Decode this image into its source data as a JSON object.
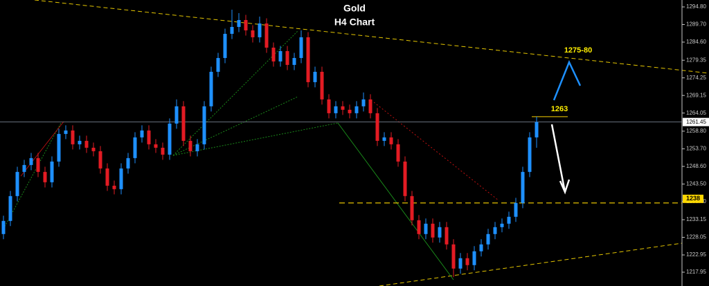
{
  "chart_data": {
    "type": "candlestick",
    "title": "Gold",
    "subtitle": "H4 Chart",
    "up_color": "#1e90ff",
    "down_color": "#e31b23",
    "open": [
      1229,
      1232.8,
      1240,
      1247,
      1249,
      1251,
      1247,
      1244,
      1250,
      1258,
      1259,
      1255,
      1256,
      1254,
      1253,
      1248,
      1243,
      1242,
      1248,
      1251,
      1257,
      1259,
      1255,
      1254,
      1252,
      1261,
      1266,
      1256,
      1253,
      1255,
      1266,
      1276,
      1280,
      1287,
      1289,
      1291,
      1288,
      1286,
      1290,
      1283,
      1279,
      1282,
      1278,
      1280,
      1286,
      1273,
      1276,
      1268,
      1264,
      1266,
      1265,
      1264,
      1266,
      1268,
      1264,
      1256,
      1257,
      1255,
      1250,
      1240,
      1233,
      1229,
      1232,
      1228,
      1231,
      1226,
      1219,
      1222,
      1220,
      1224,
      1226,
      1229,
      1231,
      1232,
      1234,
      1238,
      1247,
      1257
    ],
    "high": [
      1234.3,
      1241.5,
      1248.5,
      1250.5,
      1252.5,
      1252.5,
      1248.5,
      1251.5,
      1259.5,
      1260.5,
      1260.5,
      1257.5,
      1257.5,
      1255.5,
      1254.5,
      1249.5,
      1244.5,
      1249.5,
      1252.5,
      1258.5,
      1260.5,
      1260.5,
      1256.5,
      1255.5,
      1262.5,
      1268,
      1267.5,
      1257.5,
      1256.5,
      1267.5,
      1277.5,
      1281.5,
      1288.5,
      1294,
      1293,
      1292.5,
      1289.5,
      1292,
      1291.5,
      1284.5,
      1283.5,
      1283.5,
      1281.5,
      1288,
      1287.5,
      1277.5,
      1277.5,
      1269.5,
      1267.5,
      1267.5,
      1266.5,
      1267.5,
      1270,
      1269.5,
      1265.5,
      1258.5,
      1258.5,
      1256.5,
      1251.5,
      1241.5,
      1234.5,
      1233.5,
      1233.5,
      1232.5,
      1232.5,
      1227.5,
      1223.5,
      1223.5,
      1225.5,
      1227.5,
      1230.5,
      1232.5,
      1233.5,
      1235.5,
      1239.5,
      1248.5,
      1258.5,
      1263
    ],
    "low": [
      1227.5,
      1231.3,
      1238.5,
      1245.5,
      1247.5,
      1245.5,
      1242.5,
      1242.5,
      1248.5,
      1256.5,
      1253.5,
      1253.5,
      1252.5,
      1251.5,
      1246.5,
      1241.5,
      1240.5,
      1240.5,
      1246.5,
      1249.5,
      1255.5,
      1253.5,
      1252.5,
      1250.5,
      1250.5,
      1259.5,
      1254.5,
      1251.5,
      1251.5,
      1253.5,
      1264.5,
      1274.5,
      1278.5,
      1285.5,
      1287.5,
      1286.5,
      1284.5,
      1284.5,
      1281.5,
      1277.5,
      1277.5,
      1276.5,
      1276.5,
      1278.5,
      1271.5,
      1271.5,
      1266.5,
      1262.5,
      1262.5,
      1263.5,
      1262.5,
      1262.5,
      1264.5,
      1262.5,
      1254.5,
      1254.5,
      1253.5,
      1248.5,
      1238.5,
      1231.5,
      1227.5,
      1227.5,
      1226.5,
      1226.5,
      1224.5,
      1216.5,
      1217.5,
      1218.5,
      1218.5,
      1222.5,
      1224.5,
      1227.5,
      1229.5,
      1230.5,
      1232.5,
      1236.5,
      1245.5,
      1254
    ],
    "close": [
      1232.8,
      1240,
      1247,
      1249,
      1251,
      1247,
      1244,
      1250,
      1258,
      1259,
      1255,
      1256,
      1254,
      1253,
      1248,
      1243,
      1242,
      1248,
      1251,
      1257,
      1259,
      1255,
      1254,
      1252,
      1261,
      1266,
      1256,
      1253,
      1255,
      1266,
      1276,
      1280,
      1287,
      1289,
      1291,
      1288,
      1286,
      1290,
      1283,
      1279,
      1282,
      1278,
      1280,
      1286,
      1273,
      1276,
      1268,
      1264,
      1266,
      1265,
      1264,
      1266,
      1268,
      1264,
      1256,
      1257,
      1255,
      1250,
      1240,
      1233,
      1229,
      1232,
      1228,
      1231,
      1226,
      1219,
      1222,
      1220,
      1224,
      1226,
      1229,
      1231,
      1232,
      1234,
      1238,
      1247,
      1257,
      1261.45
    ],
    "ylim": [
      1213.95,
      1296.8
    ],
    "yticks": [
      {
        "value": 1294.8,
        "label": "1294.80"
      },
      {
        "value": 1289.7,
        "label": "1289.70"
      },
      {
        "value": 1284.6,
        "label": "1284.60"
      },
      {
        "value": 1279.35,
        "label": "1279.35"
      },
      {
        "value": 1274.25,
        "label": "1274.25"
      },
      {
        "value": 1269.15,
        "label": "1269.15"
      },
      {
        "value": 1264.05,
        "label": "1264.05"
      },
      {
        "value": 1258.8,
        "label": "1258.80"
      },
      {
        "value": 1253.7,
        "label": "1253.70"
      },
      {
        "value": 1248.6,
        "label": "1248.60"
      },
      {
        "value": 1243.5,
        "label": "1243.50"
      },
      {
        "value": 1238.4,
        "label": "1238.40"
      },
      {
        "value": 1233.15,
        "label": "1233.15"
      },
      {
        "value": 1228.05,
        "label": "1228.05"
      },
      {
        "value": 1222.95,
        "label": "1222.95"
      },
      {
        "value": 1217.95,
        "label": "1217.95"
      }
    ],
    "last_price": {
      "value": 1261.45,
      "label": "1261.45"
    },
    "levels": [
      {
        "value": 1238,
        "label": "1238",
        "color": "#ffd700"
      }
    ],
    "annotations": [
      {
        "value": 1263,
        "label": "1263"
      },
      {
        "label": "1275-80"
      }
    ]
  }
}
